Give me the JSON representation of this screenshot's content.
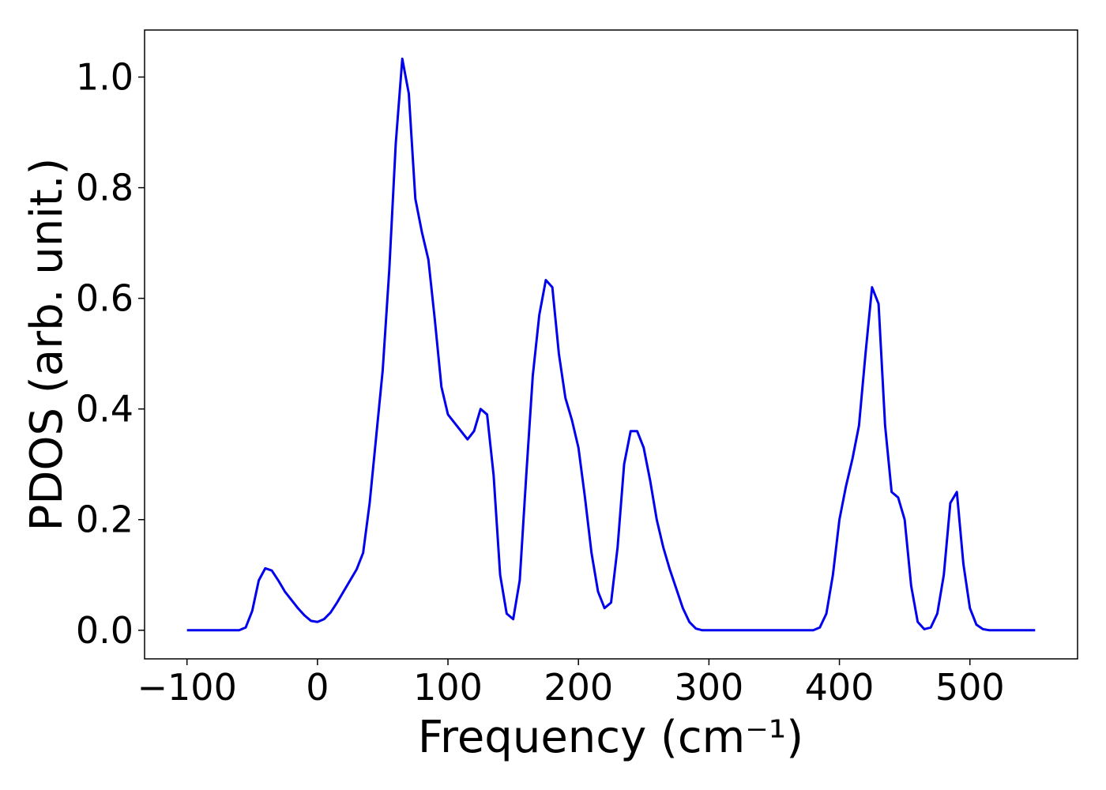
{
  "chart_data": {
    "type": "line",
    "xlabel": "Frequency (cm⁻¹)",
    "ylabel": "PDOS (arb. unit.)",
    "x": [
      -100,
      -95,
      -90,
      -85,
      -80,
      -75,
      -70,
      -65,
      -60,
      -55,
      -50,
      -45,
      -40,
      -35,
      -30,
      -25,
      -20,
      -15,
      -10,
      -5,
      0,
      5,
      10,
      15,
      20,
      25,
      30,
      35,
      40,
      45,
      50,
      55,
      60,
      65,
      70,
      75,
      80,
      85,
      90,
      95,
      100,
      105,
      110,
      115,
      120,
      125,
      130,
      135,
      140,
      145,
      150,
      155,
      160,
      165,
      170,
      175,
      180,
      185,
      190,
      195,
      200,
      205,
      210,
      215,
      220,
      225,
      230,
      235,
      240,
      245,
      250,
      255,
      260,
      265,
      270,
      275,
      280,
      285,
      290,
      295,
      300,
      305,
      310,
      315,
      320,
      325,
      330,
      335,
      340,
      345,
      350,
      355,
      360,
      365,
      370,
      375,
      380,
      385,
      390,
      395,
      400,
      405,
      410,
      415,
      420,
      425,
      430,
      435,
      440,
      445,
      450,
      455,
      460,
      465,
      470,
      475,
      480,
      485,
      490,
      495,
      500,
      505,
      510,
      515,
      520,
      525,
      530,
      535,
      540,
      545,
      550
    ],
    "series": [
      {
        "color": "#0000ee",
        "values": [
          0,
          0,
          0,
          0,
          0,
          0,
          0,
          0,
          0,
          0.005,
          0.035,
          0.09,
          0.112,
          0.108,
          0.09,
          0.07,
          0.055,
          0.04,
          0.027,
          0.017,
          0.015,
          0.02,
          0.032,
          0.05,
          0.07,
          0.09,
          0.11,
          0.14,
          0.23,
          0.35,
          0.47,
          0.65,
          0.88,
          1.033,
          0.97,
          0.78,
          0.72,
          0.67,
          0.56,
          0.44,
          0.39,
          0.375,
          0.36,
          0.345,
          0.36,
          0.4,
          0.39,
          0.28,
          0.1,
          0.03,
          0.02,
          0.09,
          0.28,
          0.46,
          0.57,
          0.633,
          0.62,
          0.5,
          0.42,
          0.38,
          0.33,
          0.24,
          0.14,
          0.07,
          0.04,
          0.05,
          0.15,
          0.3,
          0.36,
          0.36,
          0.33,
          0.27,
          0.2,
          0.15,
          0.11,
          0.075,
          0.04,
          0.015,
          0.003,
          0,
          0,
          0,
          0,
          0,
          0,
          0,
          0,
          0,
          0,
          0,
          0,
          0,
          0,
          0,
          0,
          0,
          0,
          0.005,
          0.03,
          0.1,
          0.2,
          0.26,
          0.31,
          0.37,
          0.5,
          0.62,
          0.59,
          0.37,
          0.25,
          0.24,
          0.2,
          0.08,
          0.015,
          0.002,
          0.005,
          0.03,
          0.1,
          0.23,
          0.25,
          0.12,
          0.04,
          0.01,
          0.002,
          0,
          0,
          0,
          0,
          0,
          0,
          0,
          0
        ]
      }
    ],
    "xlim": [
      -132.5,
      582.5
    ],
    "ylim": [
      -0.0517,
      1.085
    ],
    "xticks": [
      {
        "value": -100,
        "label": "−100"
      },
      0,
      100,
      200,
      300,
      400,
      500
    ],
    "yticks": [
      {
        "value": 0,
        "label": "0.0"
      },
      {
        "value": 0.2,
        "label": "0.2"
      },
      {
        "value": 0.4,
        "label": "0.4"
      },
      {
        "value": 0.6,
        "label": "0.6"
      },
      {
        "value": 0.8,
        "label": "0.8"
      },
      {
        "value": 1.0,
        "label": "1.0"
      }
    ]
  }
}
